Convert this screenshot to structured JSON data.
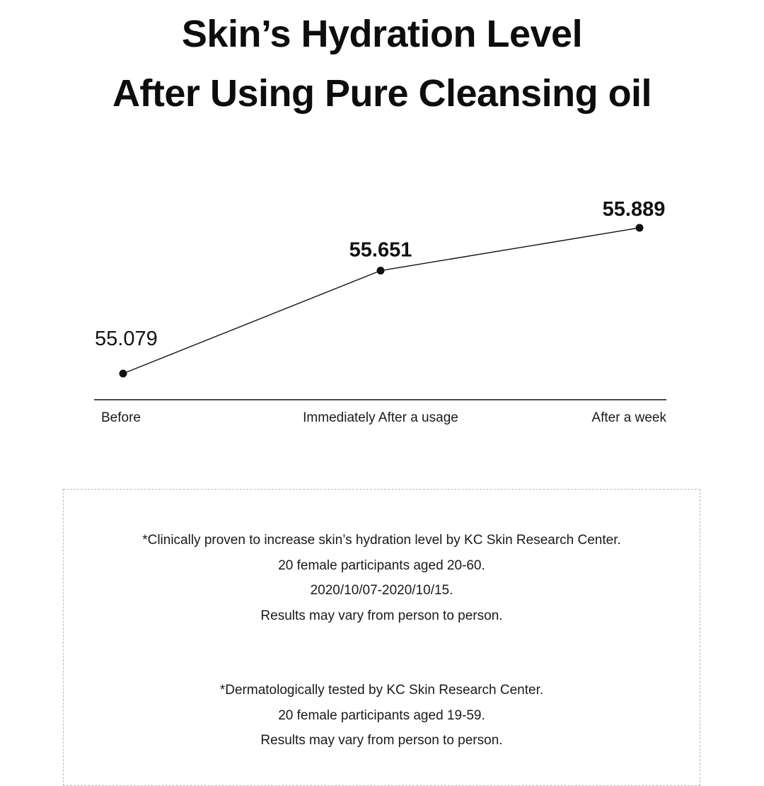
{
  "header": {
    "title_line_1": "Skin’s Hydration Level",
    "title_line_2": "After Using Pure Cleansing oil"
  },
  "chart_data": {
    "type": "line",
    "title": "Skin’s Hydration Level After Using Pure Cleansing oil",
    "xlabel": "",
    "ylabel": "",
    "categories": [
      "Before",
      "Immediately After a usage",
      "After a week"
    ],
    "values": [
      55.079,
      55.651,
      55.889
    ],
    "value_labels": [
      "55.079",
      "55.651",
      "55.889"
    ],
    "grid": false,
    "line_color": "#111111",
    "marker_color": "#111111"
  },
  "notes": {
    "group_1": [
      "*Clinically proven to increase skin’s hydration level by KC Skin Research Center.",
      "20 female participants aged 20-60.",
      "2020/10/07-2020/10/15.",
      "Results may vary from person to person."
    ],
    "group_2": [
      "*Dermatologically tested by KC Skin Research Center.",
      "20 female participants aged 19-59.",
      "Results may vary from person to person."
    ]
  }
}
